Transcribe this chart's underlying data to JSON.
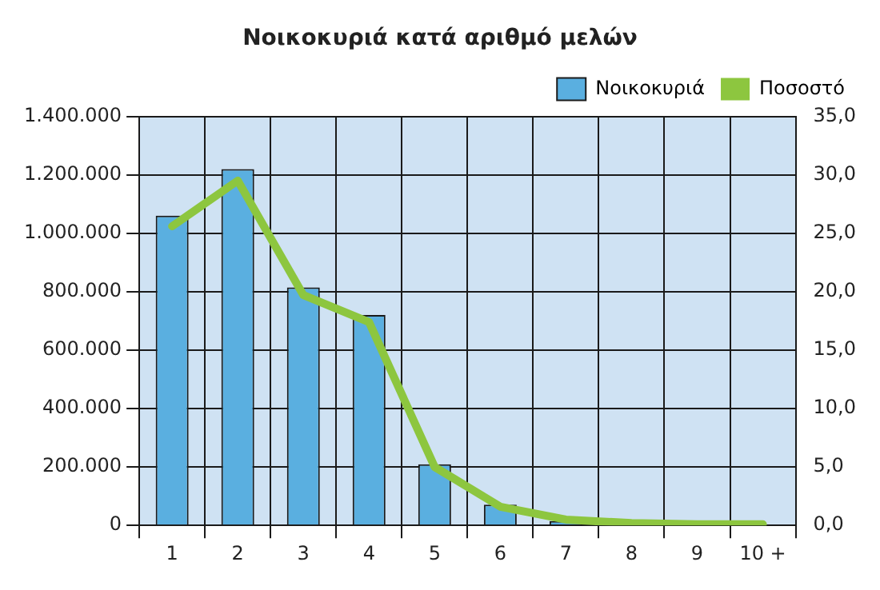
{
  "chart_data": {
    "type": "bar",
    "title": "Νοικοκυριά κατά αριθμό μελών",
    "categories": [
      "1",
      "2",
      "3",
      "4",
      "5",
      "6",
      "7",
      "8",
      "9",
      "10 +"
    ],
    "series": [
      {
        "name": "Νοικοκυριά",
        "color": "#5aafe0",
        "values": [
          1060000,
          1220000,
          815000,
          720000,
          209000,
          71000,
          15000,
          null,
          null,
          null
        ]
      },
      {
        "name": "Ποσοστό",
        "type": "line",
        "axis": "y2",
        "color": "#8dc63f",
        "marker": "none",
        "values": [
          25.6,
          29.5,
          19.7,
          17.4,
          5.0,
          1.6,
          0.5,
          0.2,
          0.1,
          0.1
        ]
      }
    ],
    "ylim": [
      0,
      1400000
    ],
    "yticks": [
      {
        "value": 0,
        "label": "0"
      },
      {
        "value": 200000,
        "label": "200.000"
      },
      {
        "value": 400000,
        "label": "400.000"
      },
      {
        "value": 600000,
        "label": "600.000"
      },
      {
        "value": 800000,
        "label": "800.000"
      },
      {
        "value": 1000000,
        "label": "1.000.000"
      },
      {
        "value": 1200000,
        "label": "1.200.000"
      },
      {
        "value": 1400000,
        "label": "1.400.000"
      }
    ],
    "y2lim": [
      0,
      35
    ],
    "y2ticks": [
      {
        "value": 0,
        "label": "0,0"
      },
      {
        "value": 5,
        "label": "5,0"
      },
      {
        "value": 10,
        "label": "10,0"
      },
      {
        "value": 15,
        "label": "15,0"
      },
      {
        "value": 20,
        "label": "20,0"
      },
      {
        "value": 25,
        "label": "25,0"
      },
      {
        "value": 30,
        "label": "30,0"
      },
      {
        "value": 35,
        "label": "35,0"
      }
    ],
    "grid": true,
    "legend": "top right"
  }
}
